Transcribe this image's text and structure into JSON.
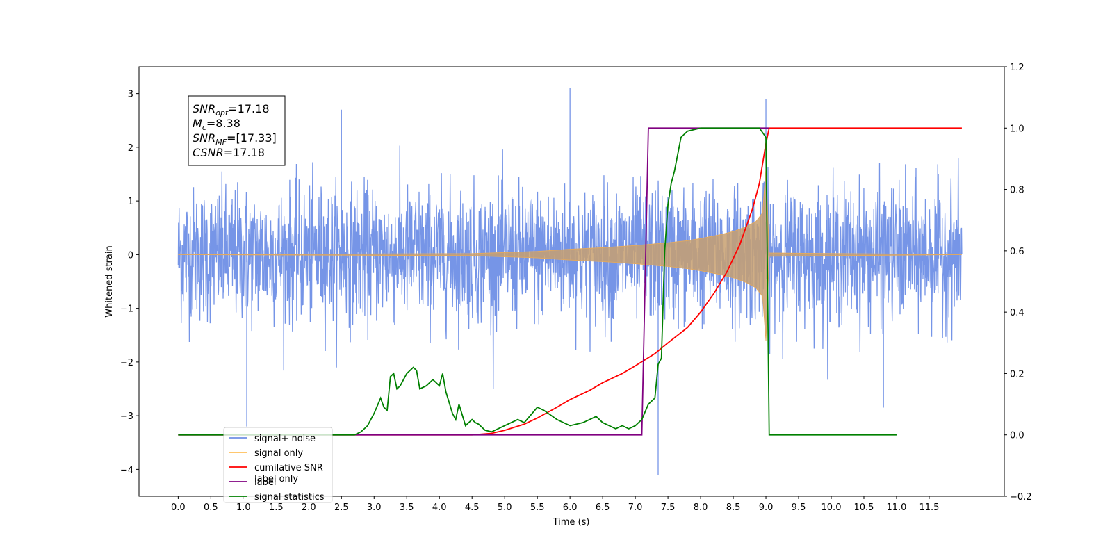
{
  "chart_data": {
    "type": "line",
    "xlabel": "Time (s)",
    "ylabel": "Whitened strain",
    "xlim": [
      -0.6,
      12.65
    ],
    "ylim": [
      -4.5,
      3.5
    ],
    "y2lim": [
      -0.2,
      1.2
    ],
    "x_ticks": [
      "0.0",
      "0.5",
      "1.0",
      "1.5",
      "2.0",
      "2.5",
      "3.0",
      "3.5",
      "4.0",
      "4.5",
      "5.0",
      "5.5",
      "6.0",
      "6.5",
      "7.0",
      "7.5",
      "8.0",
      "8.5",
      "9.0",
      "9.5",
      "10.0",
      "10.5",
      "11.0",
      "11.5"
    ],
    "y_ticks": [
      "3",
      "2",
      "1",
      "0",
      "−1",
      "−2",
      "−3",
      "−4"
    ],
    "y2_ticks": [
      "1.2",
      "1.0",
      "0.8",
      "0.6",
      "0.4",
      "0.2",
      "0.0",
      "−0.2"
    ],
    "annotation": {
      "lines": [
        {
          "base": "SNR",
          "sub": "opt",
          "rest": "=17.18"
        },
        {
          "base": "M",
          "sub": "c",
          "rest": "=8.38"
        },
        {
          "base": "SNR",
          "sub": "MF",
          "rest": "=[17.33]"
        },
        {
          "base": "CSNR",
          "sub": "",
          "rest": "=17.18"
        }
      ]
    },
    "legend": {
      "position": "lower-left",
      "entries": [
        {
          "label": "signal+ noise",
          "color": "#6f8fe6"
        },
        {
          "label": "signal only",
          "color": "#ffbf5a"
        },
        {
          "label": "cumilative SNR",
          "color": "#ff0000"
        },
        {
          "label": "label",
          "color": "#800080"
        },
        {
          "label": "signal statistics",
          "color": "#008000"
        }
      ],
      "hidden_text": "label only"
    },
    "series": [
      {
        "name": "signal+ noise",
        "axis": "left",
        "color": "#6f8fe6",
        "kind": "noise-band",
        "x_range": [
          0.0,
          12.0
        ],
        "typical_amplitude": 1.7,
        "peak_max": 3.1,
        "peak_min": -4.1,
        "notable_spikes": [
          [
            6.0,
            3.1
          ],
          [
            7.35,
            -4.1
          ],
          [
            1.05,
            -3.2
          ],
          [
            9.0,
            2.9
          ],
          [
            10.8,
            -2.85
          ],
          [
            2.5,
            2.7
          ]
        ]
      },
      {
        "name": "signal only",
        "axis": "left",
        "color": "#c8a070",
        "kind": "chirp-envelope",
        "x": [
          0.0,
          4.5,
          5.5,
          6.0,
          6.5,
          7.0,
          7.5,
          7.8,
          8.0,
          8.3,
          8.5,
          8.7,
          8.85,
          8.95,
          9.0,
          9.05,
          12.0
        ],
        "amplitude": [
          0.0,
          0.02,
          0.06,
          0.1,
          0.13,
          0.17,
          0.22,
          0.26,
          0.3,
          0.37,
          0.43,
          0.52,
          0.62,
          0.78,
          1.6,
          0.03,
          0.0
        ]
      },
      {
        "name": "cumilative SNR",
        "axis": "right",
        "color": "#ff0000",
        "x": [
          0.0,
          4.5,
          4.8,
          5.0,
          5.3,
          5.5,
          5.8,
          6.0,
          6.3,
          6.5,
          6.8,
          7.0,
          7.3,
          7.5,
          7.8,
          8.0,
          8.2,
          8.4,
          8.6,
          8.8,
          8.9,
          9.0,
          9.05,
          12.0
        ],
        "y": [
          0.0,
          0.0,
          0.005,
          0.015,
          0.035,
          0.055,
          0.09,
          0.115,
          0.145,
          0.17,
          0.2,
          0.225,
          0.265,
          0.3,
          0.35,
          0.4,
          0.46,
          0.53,
          0.62,
          0.74,
          0.82,
          0.95,
          1.0,
          1.0
        ]
      },
      {
        "name": "label",
        "axis": "right",
        "color": "#800080",
        "x": [
          0.0,
          7.1,
          7.2,
          8.95,
          9.05
        ],
        "y": [
          0.0,
          0.0,
          1.0,
          1.0,
          1.0
        ]
      },
      {
        "name": "signal statistics",
        "axis": "right",
        "color": "#008000",
        "x": [
          0.0,
          2.7,
          2.8,
          2.9,
          3.0,
          3.1,
          3.15,
          3.2,
          3.25,
          3.3,
          3.35,
          3.4,
          3.5,
          3.6,
          3.65,
          3.7,
          3.8,
          3.9,
          4.0,
          4.05,
          4.1,
          4.2,
          4.25,
          4.3,
          4.4,
          4.5,
          4.55,
          4.6,
          4.7,
          4.8,
          5.0,
          5.2,
          5.3,
          5.5,
          5.6,
          5.8,
          5.9,
          6.0,
          6.2,
          6.3,
          6.4,
          6.5,
          6.6,
          6.7,
          6.8,
          6.9,
          7.0,
          7.1,
          7.2,
          7.3,
          7.35,
          7.4,
          7.45,
          7.5,
          7.55,
          7.6,
          7.7,
          7.8,
          8.0,
          8.5,
          8.9,
          9.0,
          9.05,
          11.0
        ],
        "y": [
          0.0,
          0.0,
          0.01,
          0.03,
          0.07,
          0.12,
          0.09,
          0.08,
          0.19,
          0.2,
          0.15,
          0.16,
          0.2,
          0.22,
          0.21,
          0.15,
          0.16,
          0.18,
          0.16,
          0.2,
          0.14,
          0.07,
          0.05,
          0.1,
          0.03,
          0.05,
          0.04,
          0.035,
          0.015,
          0.01,
          0.03,
          0.05,
          0.04,
          0.09,
          0.08,
          0.05,
          0.04,
          0.03,
          0.04,
          0.05,
          0.06,
          0.04,
          0.03,
          0.02,
          0.03,
          0.02,
          0.03,
          0.05,
          0.1,
          0.12,
          0.23,
          0.25,
          0.6,
          0.75,
          0.82,
          0.86,
          0.97,
          0.99,
          1.0,
          1.0,
          1.0,
          0.97,
          0.0,
          0.0
        ]
      }
    ]
  }
}
